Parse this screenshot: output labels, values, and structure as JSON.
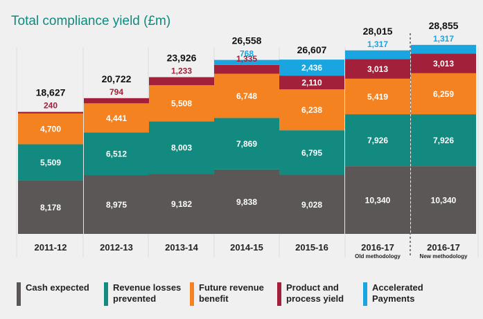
{
  "chart_data": {
    "type": "bar",
    "stacked": true,
    "title": "Total compliance yield (£m)",
    "categories": [
      "2011-12",
      "2012-13",
      "2013-14",
      "2014-15",
      "2015-16",
      "2016-17",
      "2016-17"
    ],
    "category_notes": [
      "",
      "",
      "",
      "",
      "",
      "Old methodology",
      "New methodology"
    ],
    "totals": [
      "18,627",
      "20,722",
      "23,926",
      "26,558",
      "26,607",
      "28,015",
      "28,855"
    ],
    "series": [
      {
        "name": "Cash expected",
        "color": "#5b5757",
        "label_color": "#ffffff",
        "values": [
          8178,
          8975,
          9182,
          9838,
          9028,
          10340,
          10340
        ],
        "labels": [
          "8,178",
          "8,975",
          "9,182",
          "9,838",
          "9,028",
          "10,340",
          "10,340"
        ]
      },
      {
        "name": "Revenue losses prevented",
        "color": "#138a80",
        "label_color": "#ffffff",
        "values": [
          5509,
          6512,
          8003,
          7869,
          6795,
          7926,
          7926
        ],
        "labels": [
          "5,509",
          "6,512",
          "8,003",
          "7,869",
          "6,795",
          "7,926",
          "7,926"
        ]
      },
      {
        "name": "Future revenue benefit",
        "color": "#f58220",
        "label_color": "#ffffff",
        "values": [
          4700,
          4441,
          5508,
          6748,
          6238,
          5419,
          6259
        ],
        "labels": [
          "4,700",
          "4,441",
          "5,508",
          "6,748",
          "6,238",
          "5,419",
          "6,259"
        ]
      },
      {
        "name": "Product and process yield",
        "color": "#a3203a",
        "label_color": "#ffffff",
        "values": [
          240,
          794,
          1233,
          1335,
          2110,
          3013,
          3013
        ],
        "labels": [
          "240",
          "794",
          "1,233",
          "1,335",
          "2,110",
          "3,013",
          "3,013"
        ]
      },
      {
        "name": "Accelerated Payments",
        "color": "#19a5df",
        "label_color": "#ffffff",
        "values": [
          0,
          0,
          0,
          768,
          2436,
          1317,
          1317
        ],
        "labels": [
          "",
          "",
          "",
          "768",
          "2,436",
          "1,317",
          "1,317"
        ]
      }
    ],
    "legend_lines": [
      [
        "Cash expected"
      ],
      [
        "Revenue losses",
        "prevented"
      ],
      [
        "Future revenue",
        "benefit"
      ],
      [
        "Product and",
        "process yield"
      ],
      [
        "Accelerated",
        "Payments"
      ]
    ],
    "ylim": [
      0,
      30000
    ],
    "grid": "vertical separators",
    "legend": "bottom"
  }
}
